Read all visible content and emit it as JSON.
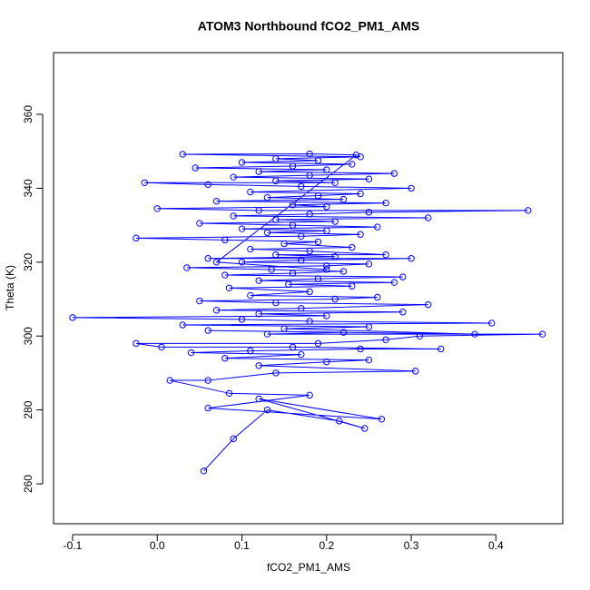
{
  "chart_data": {
    "type": "line",
    "markers": true,
    "title": "ATOM3 Northbound fCO2_PM1_AMS",
    "x_label": "fCO2_PM1_AMS",
    "y_label": "Theta (K)",
    "color": "#0000ff",
    "xlim": [
      -0.1225,
      0.479
    ],
    "ylim": [
      249.2,
      376.7
    ],
    "xticks": [
      -0.1,
      {
        "value": 0,
        "label": "0.0"
      },
      0.1,
      0.2,
      0.3,
      0.4
    ],
    "yticks": [
      260,
      280,
      300,
      320,
      340,
      360
    ],
    "x": [
      0.055,
      0.09,
      0.13,
      0.215,
      0.245,
      0.12,
      0.265,
      0.06,
      0.18,
      0.085,
      0.015,
      0.06,
      0.14,
      0.305,
      0.12,
      0.2,
      0.25,
      0.08,
      0.17,
      0.04,
      0.11,
      0.24,
      0.335,
      0.16,
      0.005,
      -0.025,
      0.19,
      0.27,
      0.31,
      0.455,
      0.13,
      0.22,
      0.06,
      0.375,
      0.15,
      0.25,
      0.03,
      0.395,
      0.18,
      0.1,
      -0.1,
      0.2,
      0.12,
      0.29,
      0.07,
      0.17,
      0.32,
      0.14,
      0.05,
      0.21,
      0.26,
      0.11,
      0.18,
      0.085,
      0.23,
      0.155,
      0.28,
      0.12,
      0.19,
      0.29,
      0.08,
      0.16,
      0.22,
      0.135,
      0.035,
      0.2,
      0.25,
      0.1,
      0.17,
      0.3,
      0.06,
      0.21,
      0.14,
      0.27,
      0.18,
      0.11,
      0.23,
      0.15,
      0.19,
      0.08,
      -0.025,
      0.17,
      0.24,
      0.13,
      0.2,
      0.1,
      0.26,
      0.16,
      0.05,
      0.21,
      0.14,
      0.32,
      0.09,
      0.18,
      0.25,
      0.438,
      0.12,
      0.0,
      0.2,
      0.16,
      0.27,
      0.07,
      0.22,
      0.13,
      0.19,
      0.24,
      0.11,
      0.3,
      0.17,
      0.06,
      -0.015,
      0.21,
      0.14,
      0.25,
      0.09,
      0.18,
      0.28,
      0.12,
      0.2,
      0.045,
      0.16,
      0.23,
      0.1,
      0.19,
      0.14,
      0.24,
      0.03,
      0.18,
      0.235,
      0.07,
      0.2
    ],
    "y": [
      263.5,
      272.2,
      280,
      277,
      275,
      283,
      277.5,
      280.5,
      284,
      284.5,
      288,
      288,
      290,
      290.5,
      292,
      293,
      293.5,
      294,
      295,
      295.5,
      296,
      296.5,
      296.5,
      297,
      297,
      298,
      298,
      299,
      300,
      300.5,
      300.5,
      301,
      301.5,
      300.5,
      302,
      302.5,
      303,
      303.5,
      304,
      304.5,
      305,
      305.5,
      306,
      306.5,
      307,
      307.5,
      308.5,
      309,
      309.5,
      310,
      310.5,
      311,
      312,
      313,
      313.5,
      314,
      314.5,
      315,
      315.5,
      316,
      316.5,
      317,
      317.5,
      318,
      318.5,
      319,
      319.5,
      320,
      320.5,
      321,
      321,
      321.5,
      322,
      322,
      323,
      323.5,
      324,
      325,
      325.5,
      326,
      326.5,
      327,
      327.5,
      328,
      328.5,
      329,
      329.5,
      330,
      330.5,
      331,
      331.5,
      332,
      332.5,
      333,
      333.5,
      334,
      334,
      334.5,
      335,
      335.5,
      336,
      336.5,
      337,
      337.5,
      338,
      338.5,
      339,
      340,
      340.5,
      341,
      341.5,
      341.5,
      342,
      342.5,
      343,
      343.5,
      344,
      344.5,
      345,
      345.5,
      346,
      346.5,
      347,
      347.5,
      348,
      348.5,
      349.2,
      349.3,
      349,
      320,
      318
    ]
  }
}
